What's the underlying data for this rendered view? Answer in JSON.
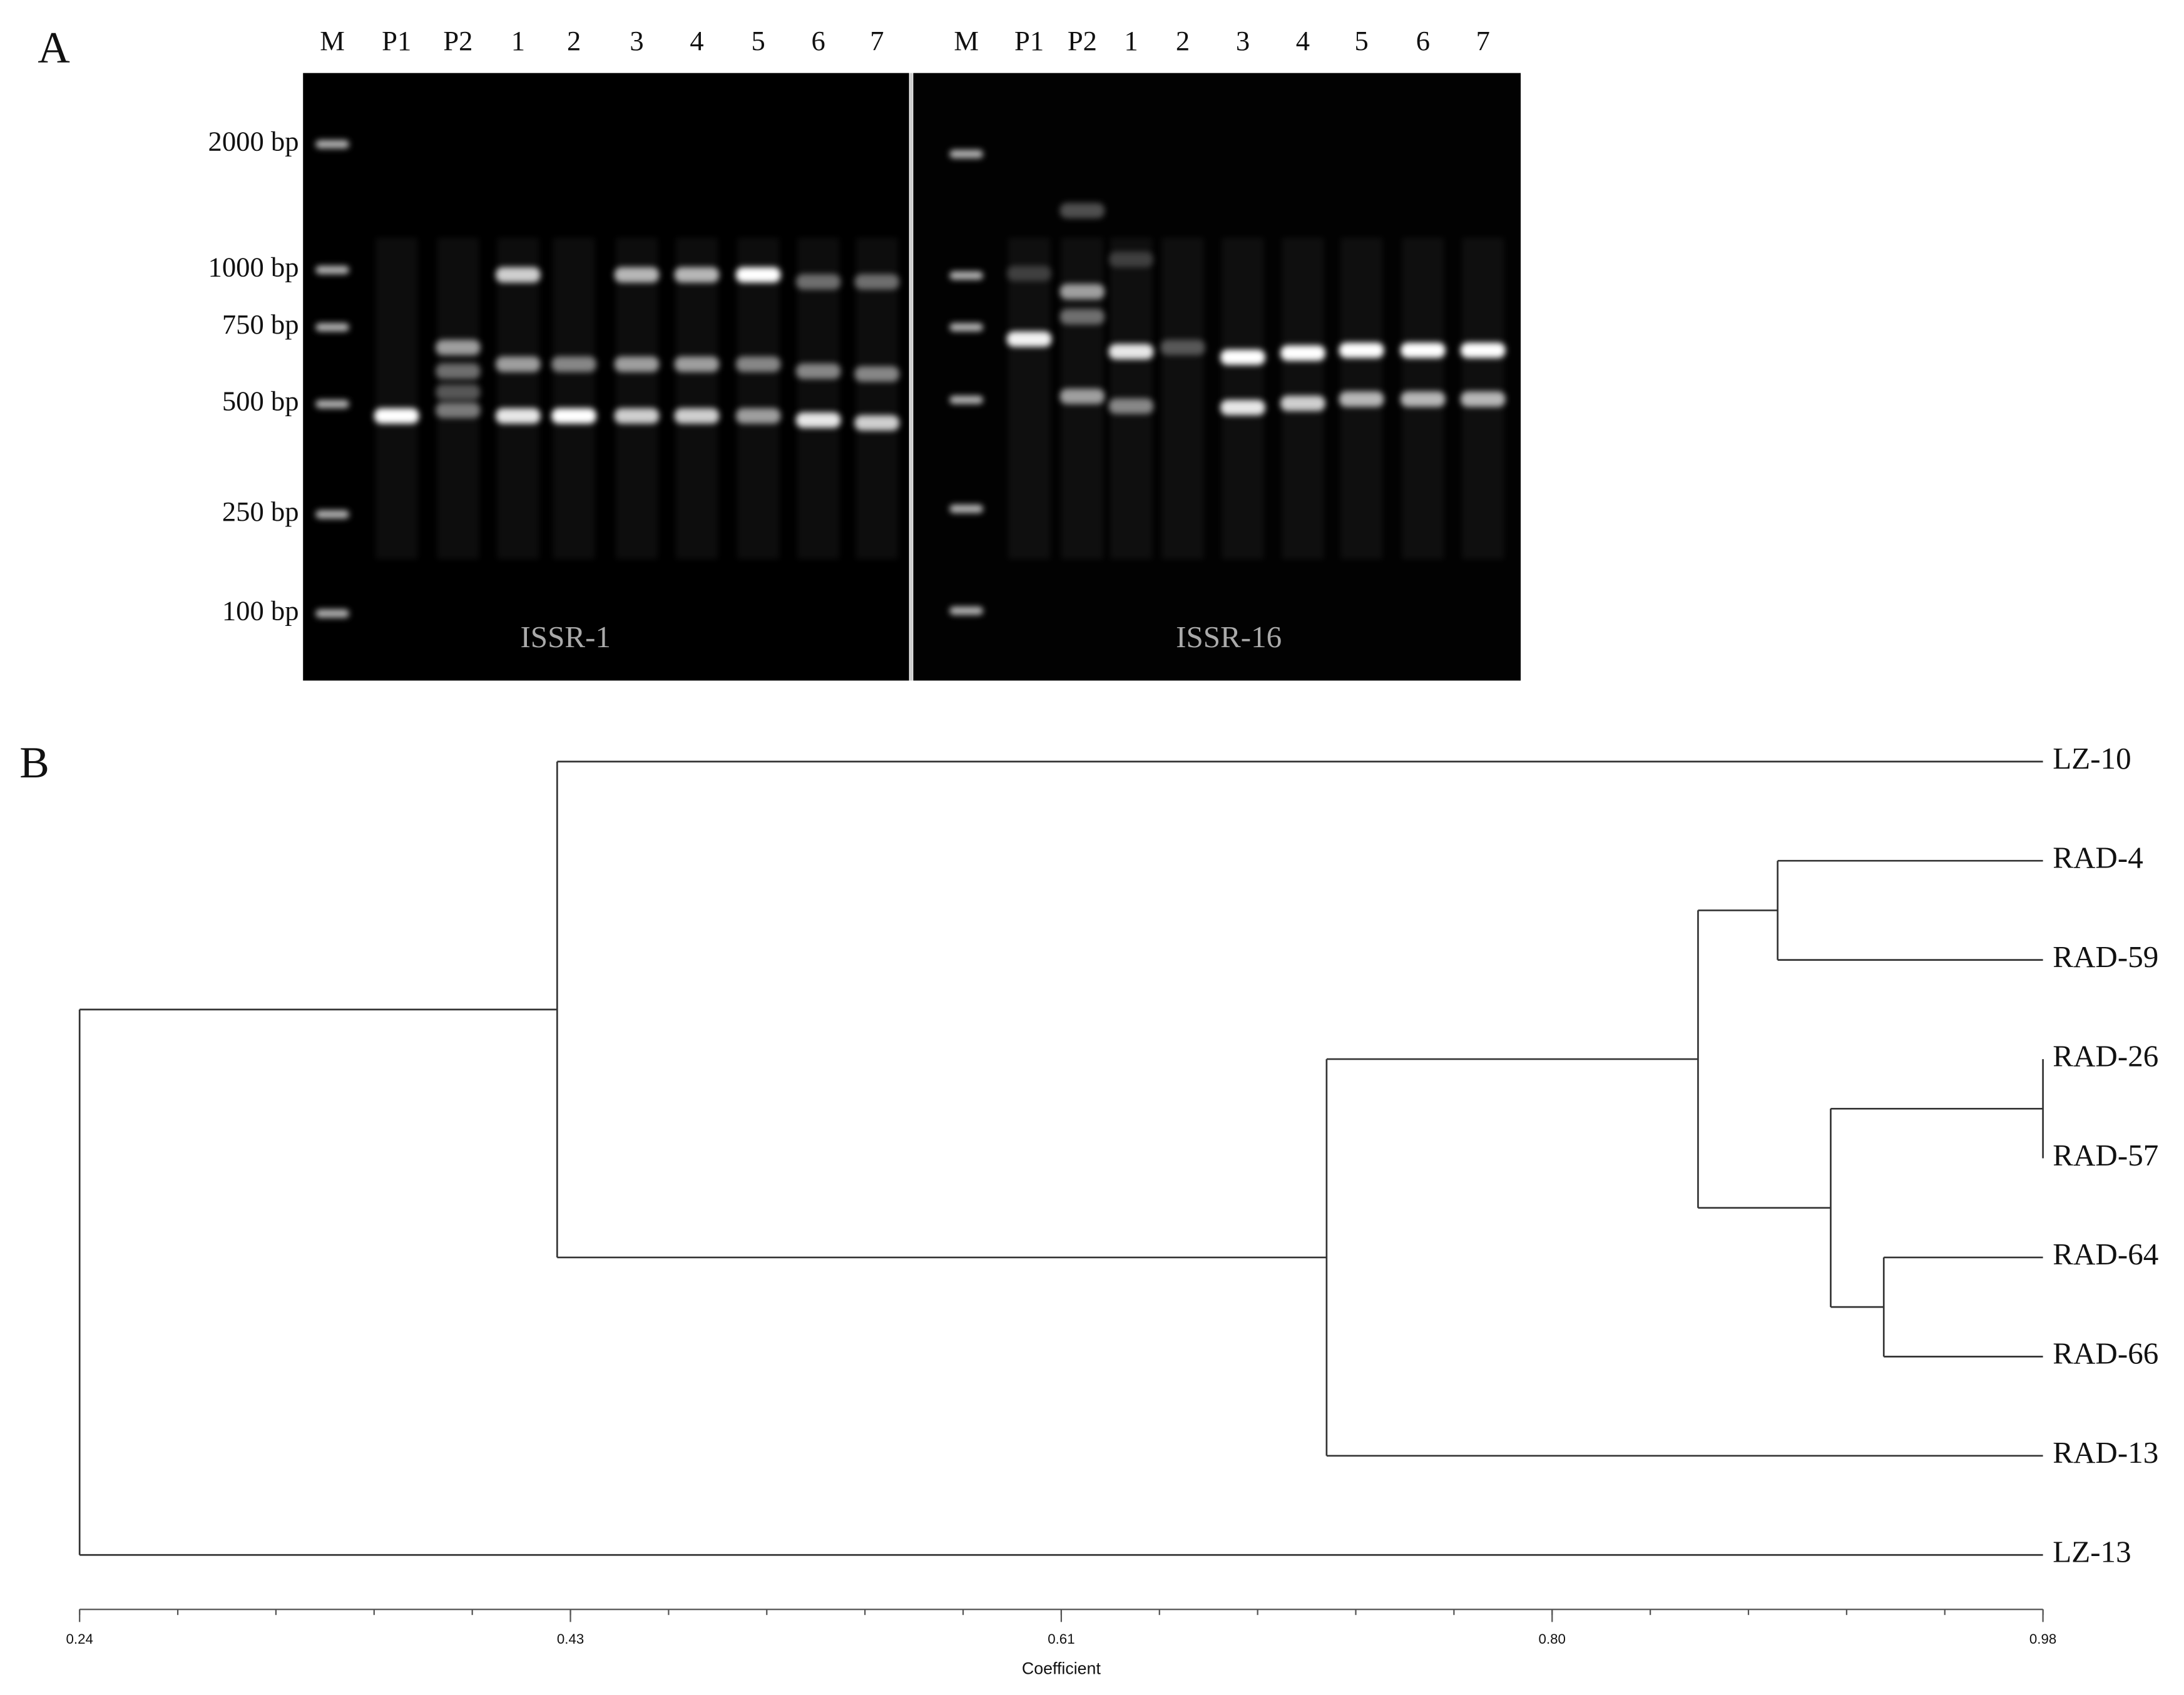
{
  "panel_a": {
    "label": "A",
    "markers": [
      "2000 bp",
      "1000 bp",
      "750 bp",
      "500 bp",
      "250 bp",
      "100 bp"
    ],
    "gels": [
      {
        "name": "ISSR-1",
        "lanes": [
          "M",
          "P1",
          "P2",
          "1",
          "2",
          "3",
          "4",
          "5",
          "6",
          "7"
        ]
      },
      {
        "name": "ISSR-16",
        "lanes": [
          "M",
          "P1",
          "P2",
          "1",
          "2",
          "3",
          "4",
          "5",
          "6",
          "7"
        ]
      }
    ]
  },
  "panel_b": {
    "label": "B",
    "axis_label": "Coefficient",
    "xlim": [
      0.24,
      0.98
    ],
    "xticks": [
      0.24,
      {
        "value": 0.425,
        "label": "0.43"
      },
      0.61,
      {
        "value": 0.795,
        "label": "0.80"
      },
      0.98
    ],
    "tree": {
      "coefficient": 0.24,
      "children": [
        {
          "coefficient": 0.42,
          "children": [
            {
              "label": "LZ-10"
            },
            {
              "coefficient": 0.71,
              "children": [
                {
                  "coefficient": 0.85,
                  "children": [
                    {
                      "coefficient": 0.88,
                      "children": [
                        {
                          "label": "RAD-4"
                        },
                        {
                          "label": "RAD-59"
                        }
                      ]
                    },
                    {
                      "coefficient": 0.9,
                      "children": [
                        {
                          "coefficient": 0.98,
                          "children": [
                            {
                              "label": "RAD-26"
                            },
                            {
                              "label": "RAD-57"
                            }
                          ]
                        },
                        {
                          "coefficient": 0.92,
                          "children": [
                            {
                              "label": "RAD-64"
                            },
                            {
                              "label": "RAD-66"
                            }
                          ]
                        }
                      ]
                    }
                  ]
                },
                {
                  "label": "RAD-13"
                }
              ]
            }
          ]
        },
        {
          "label": "LZ-13"
        }
      ]
    }
  }
}
